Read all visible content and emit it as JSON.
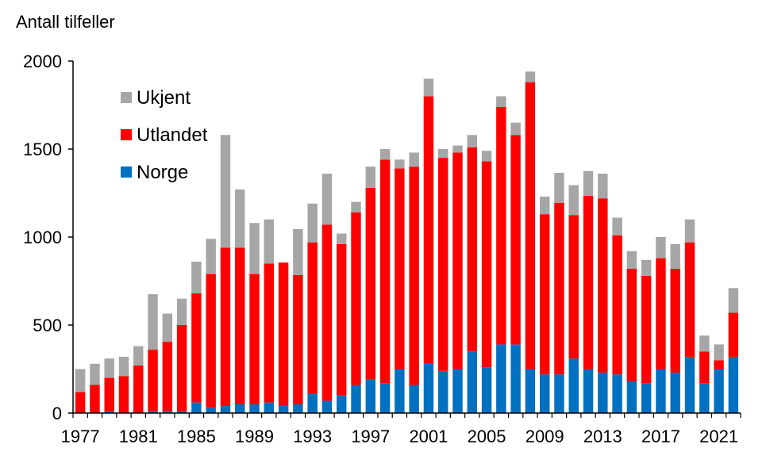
{
  "chart_data": {
    "type": "bar",
    "stacked": true,
    "ylabel": "Antall tilfeller",
    "ylim": [
      0,
      2000
    ],
    "yticks": [
      0,
      500,
      1000,
      1500,
      2000
    ],
    "x_tick_labels": [
      "1977",
      "1981",
      "1985",
      "1989",
      "1993",
      "1997",
      "2001",
      "2005",
      "2009",
      "2013",
      "2017",
      "2021"
    ],
    "legend_position": "top-left",
    "grid": false,
    "categories": [
      "1977",
      "1978",
      "1979",
      "1980",
      "1981",
      "1982",
      "1983",
      "1984",
      "1985",
      "1986",
      "1987",
      "1988",
      "1989",
      "1990",
      "1991",
      "1992",
      "1993",
      "1994",
      "1995",
      "1996",
      "1997",
      "1998",
      "1999",
      "2000",
      "2001",
      "2002",
      "2003",
      "2004",
      "2005",
      "2006",
      "2007",
      "2008",
      "2009",
      "2010",
      "2011",
      "2012",
      "2013",
      "2014",
      "2015",
      "2016",
      "2017",
      "2018",
      "2019",
      "2020",
      "2021",
      "2022"
    ],
    "series": [
      {
        "name": "Norge",
        "color": "#0070C0",
        "values": [
          0,
          0,
          10,
          0,
          0,
          10,
          10,
          10,
          60,
          30,
          40,
          50,
          50,
          60,
          40,
          50,
          110,
          70,
          100,
          160,
          190,
          170,
          250,
          160,
          280,
          240,
          250,
          350,
          260,
          390,
          390,
          250,
          220,
          220,
          310,
          250,
          230,
          220,
          180,
          170,
          250,
          230,
          320,
          170,
          250,
          320
        ]
      },
      {
        "name": "Utlandet",
        "color": "#FF0000",
        "values": [
          120,
          160,
          190,
          210,
          270,
          350,
          395,
          490,
          620,
          760,
          900,
          890,
          740,
          790,
          815,
          735,
          860,
          1000,
          860,
          980,
          1090,
          1270,
          1140,
          1240,
          1520,
          1210,
          1230,
          1160,
          1170,
          1350,
          1190,
          1630,
          910,
          975,
          815,
          985,
          990,
          790,
          640,
          610,
          630,
          590,
          650,
          180,
          50,
          250
        ]
      },
      {
        "name": "Ukjent",
        "color": "#A6A6A6",
        "values": [
          130,
          120,
          110,
          110,
          110,
          315,
          160,
          150,
          180,
          200,
          640,
          330,
          290,
          250,
          0,
          260,
          220,
          290,
          60,
          60,
          120,
          60,
          50,
          80,
          100,
          50,
          40,
          70,
          60,
          60,
          70,
          60,
          100,
          170,
          170,
          140,
          140,
          100,
          100,
          90,
          120,
          140,
          130,
          90,
          90,
          140
        ]
      }
    ]
  },
  "legend_items": [
    {
      "label": "Ukjent",
      "color": "#A6A6A6"
    },
    {
      "label": "Utlandet",
      "color": "#FF0000"
    },
    {
      "label": "Norge",
      "color": "#0070C0"
    }
  ]
}
